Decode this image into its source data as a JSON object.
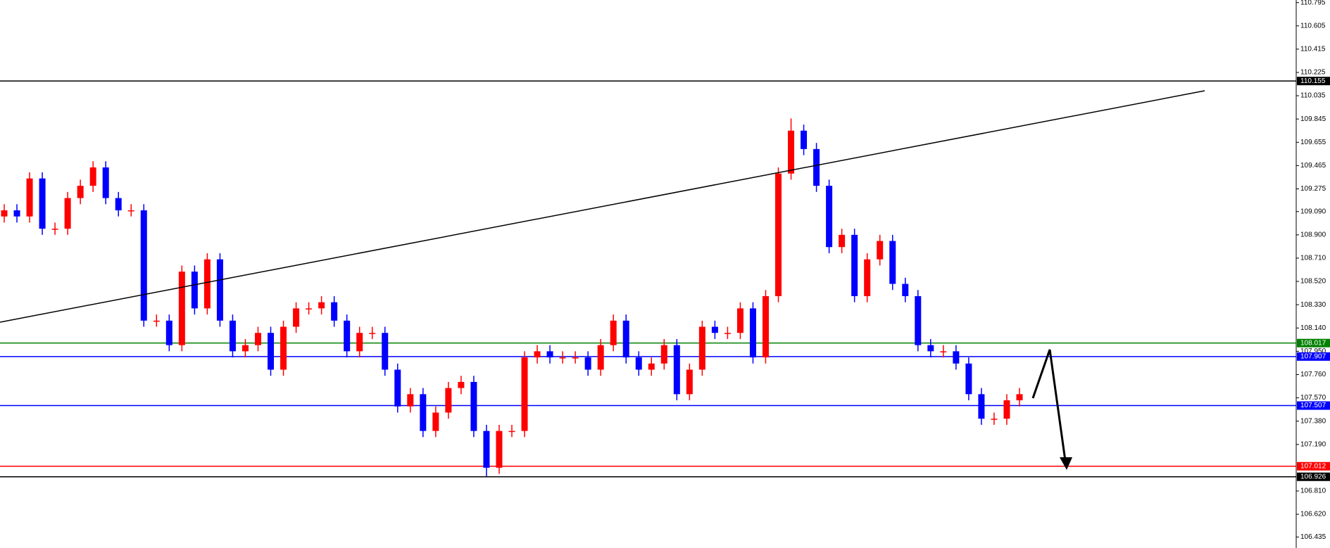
{
  "chart_data": {
    "type": "candlestick",
    "up_color": "#ff0000",
    "down_color": "#0000ff",
    "open": [
      109.05,
      109.1,
      109.05,
      109.36,
      108.95,
      108.95,
      109.2,
      109.3,
      109.45,
      109.2,
      109.1,
      109.1,
      108.2,
      108.2,
      108.0,
      108.6,
      108.3,
      108.7,
      108.2,
      107.95,
      108.0,
      108.1,
      107.8,
      108.15,
      108.3,
      108.3,
      108.35,
      108.2,
      107.95,
      108.1,
      108.1,
      107.8,
      107.5,
      107.6,
      107.3,
      107.45,
      107.65,
      107.7,
      107.3,
      107.0,
      107.3,
      107.3,
      107.9,
      107.95,
      107.9,
      107.9,
      107.9,
      107.8,
      108.0,
      108.2,
      107.9,
      107.8,
      107.85,
      108.0,
      107.6,
      107.8,
      108.15,
      108.1,
      108.1,
      108.3,
      107.9,
      108.4,
      109.4,
      109.75,
      109.6,
      109.3,
      108.8,
      108.9,
      108.4,
      108.7,
      108.85,
      108.5,
      108.4,
      108.0,
      107.95,
      107.95,
      107.85,
      107.6,
      107.4,
      107.4,
      107.55
    ],
    "high": [
      109.15,
      109.15,
      109.41,
      109.41,
      109.0,
      109.25,
      109.35,
      109.5,
      109.5,
      109.25,
      109.15,
      109.15,
      108.25,
      108.25,
      108.65,
      108.65,
      108.75,
      108.75,
      108.25,
      108.05,
      108.15,
      108.15,
      108.2,
      108.35,
      108.35,
      108.4,
      108.4,
      108.25,
      108.15,
      108.15,
      108.15,
      107.85,
      107.65,
      107.65,
      107.5,
      107.7,
      107.75,
      107.75,
      107.35,
      107.35,
      107.35,
      107.95,
      108.0,
      108.0,
      107.95,
      107.95,
      107.95,
      108.05,
      108.25,
      108.25,
      107.95,
      107.9,
      108.05,
      108.05,
      107.85,
      108.2,
      108.2,
      108.15,
      108.35,
      108.35,
      108.45,
      109.45,
      109.85,
      109.8,
      109.65,
      109.35,
      108.95,
      108.95,
      108.75,
      108.9,
      108.9,
      108.55,
      108.45,
      108.05,
      108.0,
      108.0,
      107.9,
      107.65,
      107.45,
      107.6,
      107.65
    ],
    "low": [
      109.0,
      109.0,
      109.0,
      108.9,
      108.9,
      108.9,
      109.15,
      109.25,
      109.15,
      109.05,
      109.05,
      108.15,
      108.15,
      107.95,
      107.95,
      108.25,
      108.25,
      108.15,
      107.9,
      107.9,
      107.95,
      107.75,
      107.75,
      108.1,
      108.25,
      108.25,
      108.15,
      107.9,
      107.9,
      108.05,
      107.75,
      107.45,
      107.45,
      107.25,
      107.25,
      107.4,
      107.6,
      107.25,
      106.93,
      106.95,
      107.25,
      107.25,
      107.85,
      107.85,
      107.85,
      107.85,
      107.75,
      107.75,
      107.95,
      107.85,
      107.75,
      107.75,
      107.8,
      107.55,
      107.55,
      107.75,
      108.05,
      108.05,
      108.05,
      107.85,
      107.85,
      108.35,
      109.35,
      109.55,
      109.25,
      108.75,
      108.75,
      108.35,
      108.35,
      108.65,
      108.45,
      108.35,
      107.95,
      107.9,
      107.9,
      107.8,
      107.55,
      107.35,
      107.35,
      107.35,
      107.5
    ],
    "close": [
      109.1,
      109.05,
      109.36,
      108.95,
      108.95,
      109.2,
      109.3,
      109.45,
      109.2,
      109.1,
      109.1,
      108.2,
      108.2,
      108.0,
      108.6,
      108.3,
      108.7,
      108.2,
      107.95,
      108.0,
      108.1,
      107.8,
      108.15,
      108.3,
      108.3,
      108.35,
      108.2,
      107.95,
      108.1,
      108.1,
      107.8,
      107.5,
      107.6,
      107.3,
      107.45,
      107.65,
      107.7,
      107.3,
      107.0,
      107.3,
      107.3,
      107.9,
      107.95,
      107.9,
      107.9,
      107.9,
      107.8,
      108.0,
      108.2,
      107.9,
      107.8,
      107.85,
      108.0,
      107.6,
      107.8,
      108.15,
      108.1,
      108.1,
      108.3,
      107.9,
      108.4,
      109.4,
      109.75,
      109.6,
      109.3,
      108.8,
      108.9,
      108.4,
      108.7,
      108.85,
      108.5,
      108.4,
      108.0,
      107.95,
      107.95,
      107.85,
      107.6,
      107.4,
      107.4,
      107.55,
      107.6
    ],
    "ylim": [
      106.345,
      110.816
    ],
    "yticks": [
      110.795,
      110.605,
      110.415,
      110.225,
      110.035,
      109.845,
      109.655,
      109.465,
      109.275,
      {
        "value": 109.09,
        "label": "109.090"
      },
      {
        "value": 108.9,
        "label": "108.900"
      },
      {
        "value": 108.71,
        "label": "108.710"
      },
      {
        "value": 108.52,
        "label": "108.520"
      },
      {
        "value": 108.33,
        "label": "108.330"
      },
      {
        "value": 108.14,
        "label": "108.140"
      },
      {
        "value": 107.95,
        "label": "107.950"
      },
      {
        "value": 107.76,
        "label": "107.760"
      },
      {
        "value": 107.57,
        "label": "107.570"
      },
      {
        "value": 107.38,
        "label": "107.380"
      },
      {
        "value": 107.19,
        "label": "107.190"
      },
      {
        "value": 106.81,
        "label": "106.810"
      },
      {
        "value": 106.62,
        "label": "106.620"
      },
      106.435
    ],
    "levels": [
      {
        "value": 110.155,
        "color": "#000000"
      },
      {
        "value": 108.017,
        "color": "#008000"
      },
      {
        "value": 107.907,
        "color": "#0000ff"
      },
      {
        "value": 107.507,
        "color": "#0000ff"
      },
      {
        "value": 107.012,
        "color": "#ff0000"
      },
      {
        "value": 106.926,
        "color": "#000000"
      }
    ]
  }
}
